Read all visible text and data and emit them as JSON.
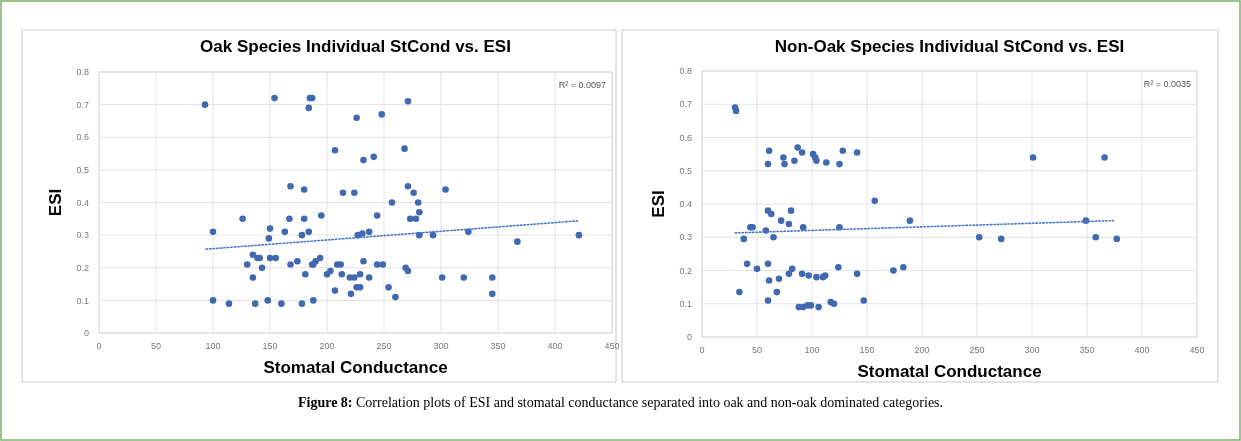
{
  "chart_data": [
    {
      "type": "scatter",
      "title": "Oak Species Individual StCond vs. ESI",
      "xlabel": "Stomatal Conductance",
      "ylabel": "ESI",
      "xlim": [
        0,
        450
      ],
      "xticks": [
        0,
        50,
        100,
        150,
        200,
        250,
        300,
        350,
        400,
        450
      ],
      "ylim": [
        0,
        0.8
      ],
      "yticks": [
        0,
        0.1,
        0.2,
        0.3,
        0.4,
        0.5,
        0.6,
        0.7,
        0.8
      ],
      "grid": true,
      "annotations": [
        "R² = 0.0097"
      ],
      "series": [
        {
          "color": "#4169b0",
          "marker": "circle",
          "x": [
            93,
            154,
            185,
            187,
            184,
            168,
            180,
            126,
            167,
            180,
            150,
            149,
            163,
            178,
            184,
            100,
            135,
            139,
            141,
            130,
            143,
            150,
            155,
            135,
            168,
            174,
            181,
            187,
            190,
            100,
            114,
            137,
            148,
            160,
            178,
            188,
            271,
            226,
            248,
            207,
            268,
            232,
            241,
            214,
            224,
            271,
            276,
            304,
            280,
            257,
            195,
            244,
            281,
            273,
            278,
            227,
            231,
            237,
            281,
            293,
            324,
            367,
            421,
            188,
            194,
            200,
            203,
            209,
            212,
            213,
            220,
            224,
            229,
            232,
            237,
            244,
            249,
            269,
            271,
            301,
            320,
            345,
            345,
            207,
            221,
            226,
            229,
            254,
            260
          ],
          "values": [
            0.7,
            0.72,
            0.72,
            0.72,
            0.69,
            0.45,
            0.44,
            0.35,
            0.35,
            0.35,
            0.32,
            0.29,
            0.31,
            0.3,
            0.31,
            0.31,
            0.24,
            0.23,
            0.23,
            0.21,
            0.2,
            0.23,
            0.23,
            0.17,
            0.21,
            0.22,
            0.18,
            0.21,
            0.22,
            0.1,
            0.09,
            0.09,
            0.1,
            0.09,
            0.09,
            0.1,
            0.71,
            0.66,
            0.67,
            0.56,
            0.565,
            0.53,
            0.54,
            0.43,
            0.43,
            0.45,
            0.43,
            0.44,
            0.4,
            0.4,
            0.36,
            0.36,
            0.37,
            0.35,
            0.35,
            0.3,
            0.305,
            0.31,
            0.3,
            0.3,
            0.31,
            0.28,
            0.3,
            0.21,
            0.23,
            0.18,
            0.19,
            0.21,
            0.21,
            0.18,
            0.17,
            0.17,
            0.18,
            0.22,
            0.17,
            0.21,
            0.21,
            0.2,
            0.19,
            0.17,
            0.17,
            0.17,
            0.12,
            0.13,
            0.12,
            0.14,
            0.14,
            0.14,
            0.11
          ]
        },
        {
          "type": "line",
          "color": "#4a78c8",
          "line_style": "dotted",
          "x": [
            94,
            421
          ],
          "values": [
            0.257,
            0.344
          ]
        }
      ]
    },
    {
      "type": "scatter",
      "title": "Non-Oak Species Individual StCond vs. ESI",
      "xlabel": "Stomatal Conductance",
      "ylabel": "ESI",
      "xlim": [
        0,
        450
      ],
      "xticks": [
        0,
        50,
        100,
        150,
        200,
        250,
        300,
        350,
        400,
        450
      ],
      "ylim": [
        0,
        0.8
      ],
      "yticks": [
        0,
        0.1,
        0.2,
        0.3,
        0.4,
        0.5,
        0.6,
        0.7,
        0.8
      ],
      "grid": true,
      "annotations": [
        "R² = 0.0035",
        "Figure 8: Correlation plots of ESI and stomatal conductance separated into oak and non-oak dominated categories."
      ],
      "series": [
        {
          "color": "#4169b0",
          "marker": "circle",
          "x": [
            30,
            31,
            61,
            60,
            74,
            75,
            84,
            87,
            91,
            101,
            103,
            104,
            113,
            125,
            128,
            141,
            157,
            189,
            60,
            63,
            81,
            72,
            79,
            92,
            125,
            44,
            46,
            58,
            38,
            65,
            41,
            50,
            60,
            61,
            70,
            79,
            82,
            91,
            97,
            104,
            110,
            112,
            124,
            141,
            174,
            183,
            34,
            68,
            60,
            88,
            92,
            96,
            99,
            106,
            117,
            120,
            147,
            301,
            366,
            252,
            272,
            349,
            358,
            377
          ],
          "values": [
            0.69,
            0.68,
            0.56,
            0.52,
            0.54,
            0.52,
            0.53,
            0.57,
            0.555,
            0.55,
            0.54,
            0.53,
            0.525,
            0.52,
            0.56,
            0.555,
            0.41,
            0.35,
            0.38,
            0.37,
            0.38,
            0.35,
            0.34,
            0.33,
            0.33,
            0.33,
            0.33,
            0.32,
            0.295,
            0.3,
            0.22,
            0.205,
            0.22,
            0.17,
            0.175,
            0.19,
            0.205,
            0.19,
            0.185,
            0.18,
            0.18,
            0.185,
            0.21,
            0.19,
            0.2,
            0.21,
            0.135,
            0.135,
            0.11,
            0.09,
            0.09,
            0.095,
            0.095,
            0.09,
            0.105,
            0.1,
            0.11,
            0.54,
            0.54,
            0.3,
            0.295,
            0.35,
            0.3,
            0.295
          ]
        },
        {
          "type": "line",
          "color": "#4a78c8",
          "line_style": "dotted",
          "x": [
            30,
            374
          ],
          "values": [
            0.313,
            0.35
          ]
        }
      ]
    }
  ]
}
